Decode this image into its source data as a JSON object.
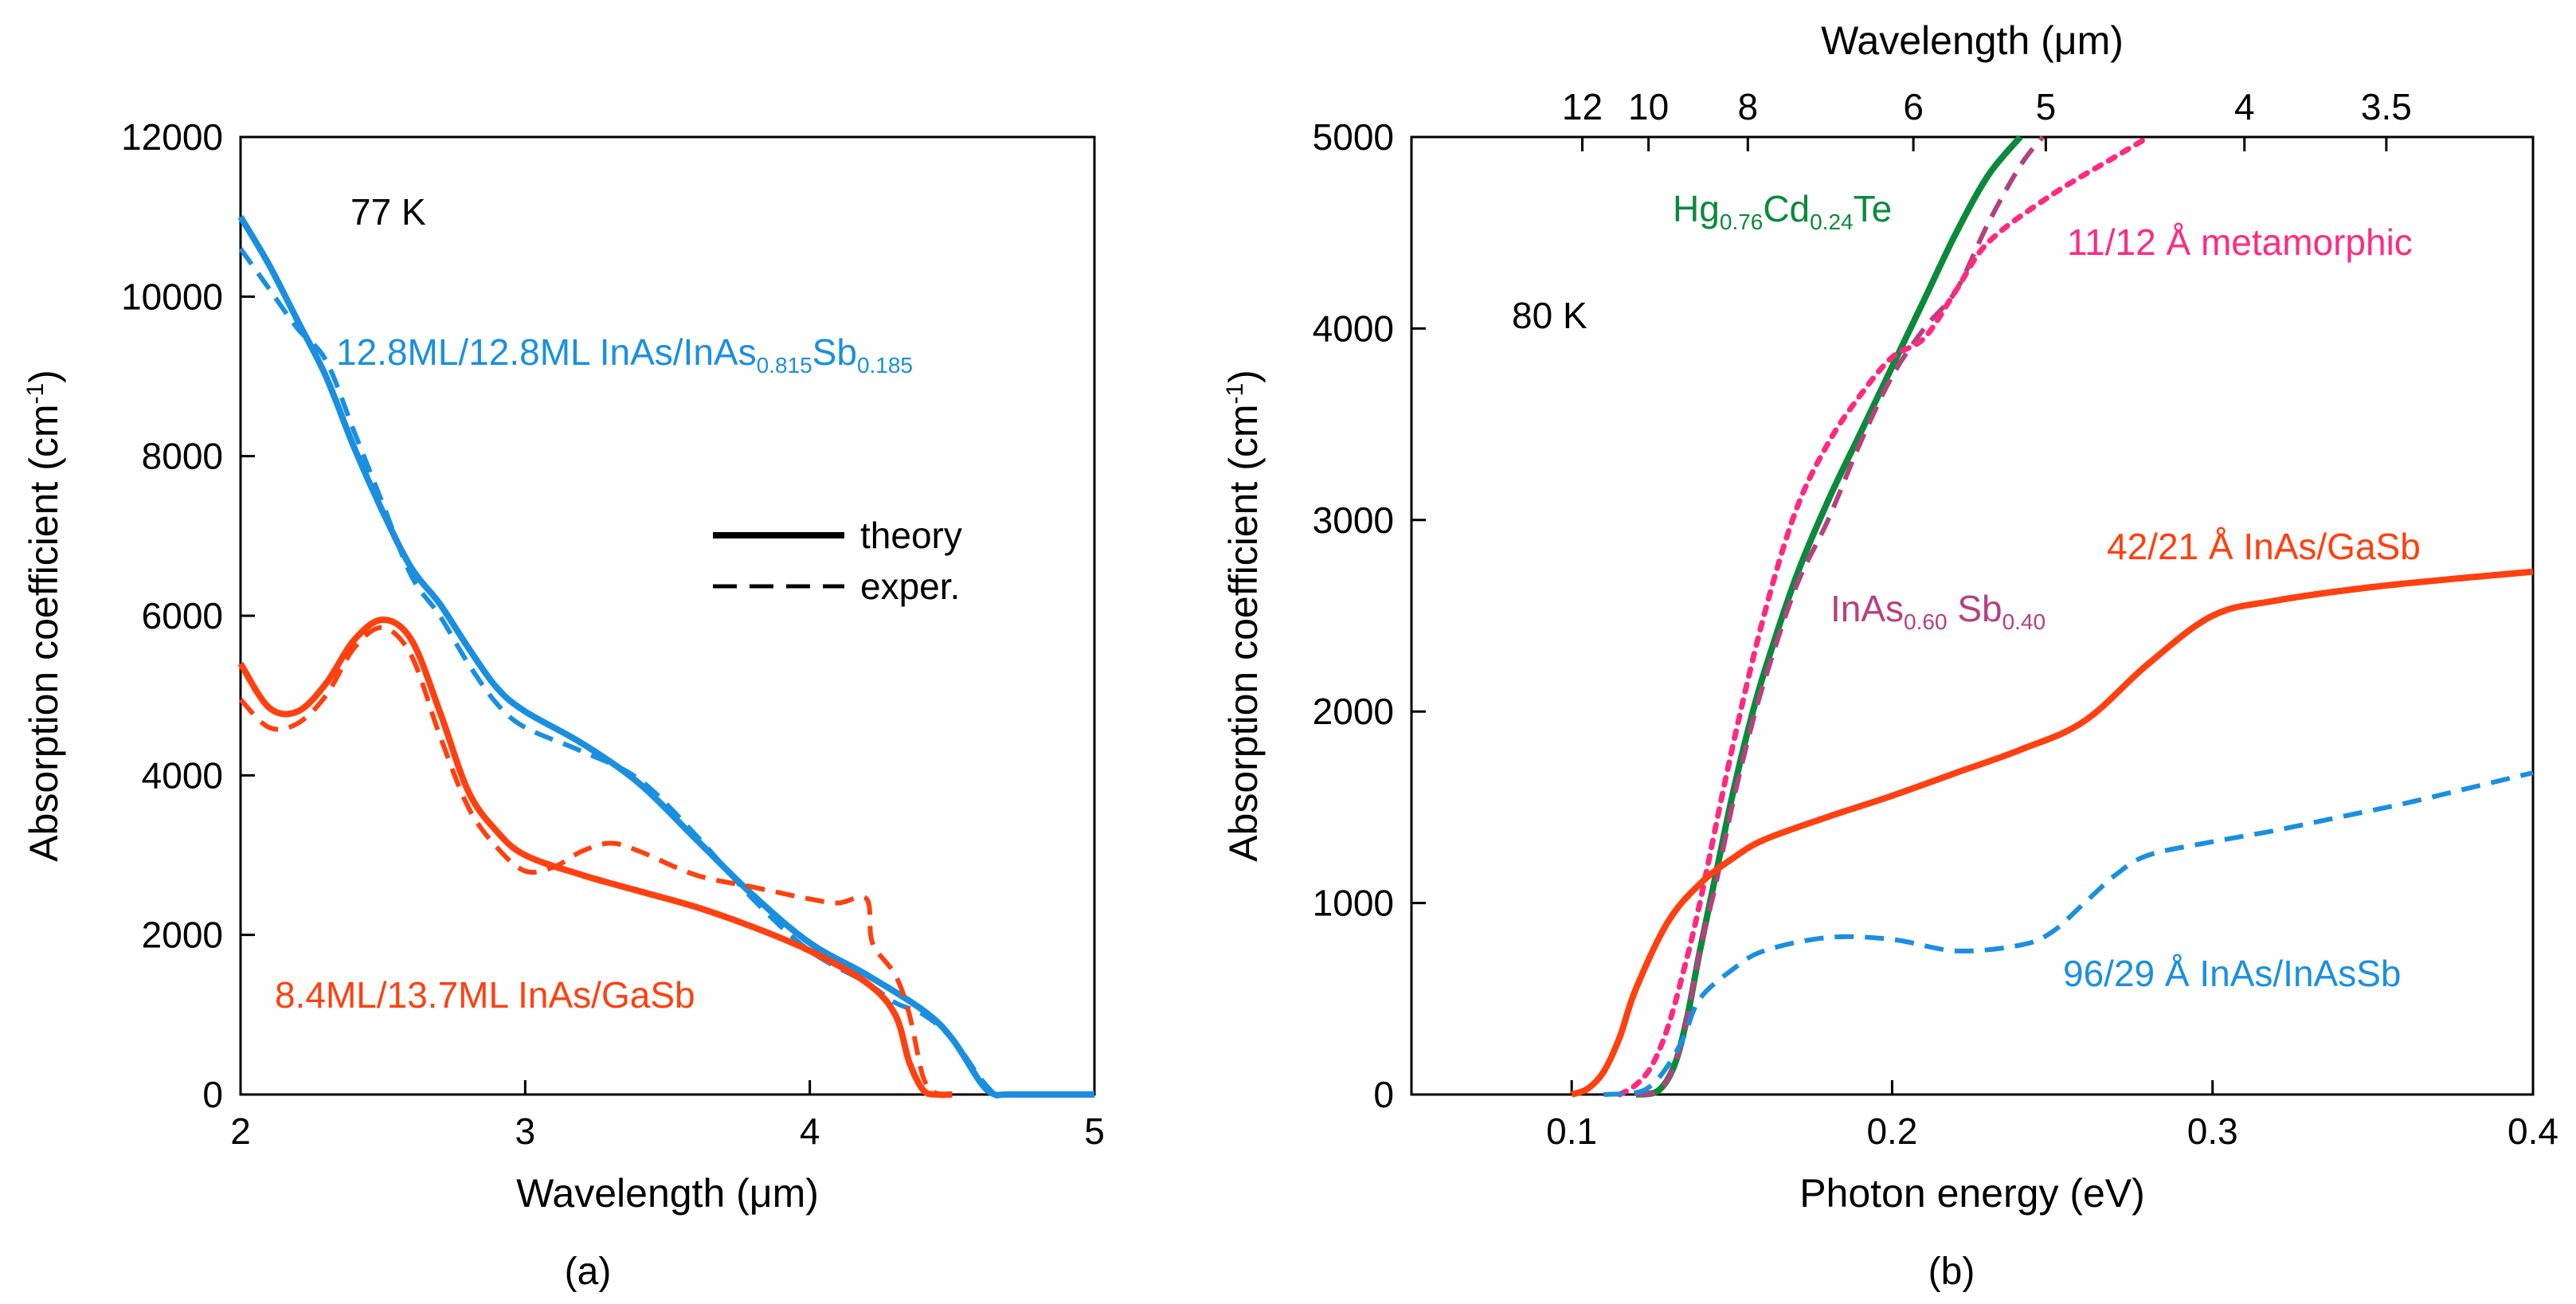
{
  "chart_data": [
    {
      "panel": "a",
      "type": "line",
      "caption": "(a)",
      "xlabel": "Wavelength (μm)",
      "ylabel": "Absorption coefficient (cm",
      "ylabel_sup": "-1",
      "ylabel_close": ")",
      "xlim": [
        2,
        5
      ],
      "ylim": [
        0,
        12000
      ],
      "xticks": [
        2,
        3,
        4,
        5
      ],
      "yticks": [
        0,
        2000,
        4000,
        6000,
        8000,
        10000,
        12000
      ],
      "temperature": "77 K",
      "legend": {
        "placement": "center-right",
        "entries": [
          {
            "label": "theory",
            "style": "solid"
          },
          {
            "label": "exper.",
            "style": "dashed"
          }
        ]
      },
      "series_labels": {
        "blue": {
          "main": "12.8ML/12.8ML InAs/InAs",
          "sub1": "0.815",
          "mid": "Sb",
          "sub2": "0.185"
        },
        "red": {
          "main": "8.4ML/13.7ML InAs/GaSb"
        }
      },
      "series": [
        {
          "name": "12.8ML/12.8ML InAs/InAs0.815Sb0.185 theory",
          "color": "#1a8fe0",
          "style": "solid",
          "x": [
            2.0,
            2.1,
            2.2,
            2.3,
            2.4,
            2.5,
            2.6,
            2.7,
            2.8,
            2.9,
            3.0,
            3.2,
            3.4,
            3.6,
            3.8,
            4.0,
            4.2,
            4.4,
            4.5,
            4.6,
            4.65,
            4.7,
            5.0
          ],
          "y": [
            11000,
            10400,
            9700,
            9000,
            8100,
            7300,
            6600,
            6150,
            5600,
            5100,
            4800,
            4400,
            3900,
            3200,
            2500,
            1900,
            1500,
            1050,
            700,
            150,
            0,
            0,
            0
          ]
        },
        {
          "name": "12.8ML/12.8ML InAs/InAs0.815Sb0.185 exper.",
          "color": "#1a8fe0",
          "style": "dashed",
          "x": [
            2.0,
            2.1,
            2.2,
            2.3,
            2.4,
            2.5,
            2.6,
            2.7,
            2.8,
            2.9,
            3.0,
            3.2,
            3.4,
            3.6,
            3.8,
            4.0,
            4.2,
            4.3,
            4.4,
            4.5,
            4.6,
            4.65
          ],
          "y": [
            10600,
            10100,
            9600,
            9200,
            8300,
            7400,
            6500,
            6000,
            5400,
            4900,
            4600,
            4300,
            3950,
            3250,
            2450,
            1800,
            1400,
            1150,
            1000,
            700,
            200,
            0
          ]
        },
        {
          "name": "8.4ML/13.7ML InAs/GaSb theory",
          "color": "#ff4010",
          "style": "solid",
          "x": [
            2.0,
            2.1,
            2.2,
            2.3,
            2.4,
            2.5,
            2.6,
            2.7,
            2.8,
            2.9,
            3.0,
            3.2,
            3.4,
            3.6,
            3.8,
            4.0,
            4.2,
            4.3,
            4.35,
            4.4,
            4.45,
            4.5
          ],
          "y": [
            5400,
            4850,
            4800,
            5150,
            5700,
            5950,
            5700,
            4800,
            3800,
            3300,
            3000,
            2750,
            2550,
            2350,
            2100,
            1800,
            1400,
            1000,
            400,
            50,
            0,
            0
          ]
        },
        {
          "name": "8.4ML/13.7ML InAs/GaSb exper.",
          "color": "#ff4010",
          "style": "dashed",
          "x": [
            2.0,
            2.1,
            2.2,
            2.3,
            2.4,
            2.5,
            2.6,
            2.7,
            2.8,
            2.9,
            3.0,
            3.1,
            3.2,
            3.3,
            3.4,
            3.6,
            3.8,
            4.0,
            4.1,
            4.2,
            4.22,
            4.3,
            4.35,
            4.4,
            4.45
          ],
          "y": [
            4950,
            4600,
            4650,
            5000,
            5600,
            5850,
            5500,
            4500,
            3600,
            3100,
            2800,
            2850,
            3050,
            3150,
            3050,
            2750,
            2600,
            2450,
            2400,
            2450,
            1900,
            1500,
            1000,
            200,
            0
          ]
        }
      ]
    },
    {
      "panel": "b",
      "type": "line",
      "caption": "(b)",
      "xlabel": "Photon energy (eV)",
      "x2label": "Wavelength (μm)",
      "ylabel": "Absorption coefficient (cm",
      "ylabel_sup": "-1",
      "ylabel_close": ")",
      "xlim": [
        0.05,
        0.4
      ],
      "ylim": [
        0,
        5000
      ],
      "xticks": [
        0.1,
        0.2,
        0.3,
        0.4
      ],
      "xtick_labels": [
        "0.1",
        "0.2",
        "0.3",
        "0.4"
      ],
      "yticks": [
        0,
        1000,
        2000,
        3000,
        4000,
        5000
      ],
      "top_ticks": [
        12,
        10,
        8,
        6,
        5,
        4,
        3.5
      ],
      "temperature": "80 K",
      "series_labels": {
        "hgcdte": {
          "a": "Hg",
          "s1": "0.76",
          "b": "Cd",
          "s2": "0.24",
          "c": "Te"
        },
        "inassb": {
          "a": "InAs",
          "s1": "0.60",
          "b": " Sb",
          "s2": "0.40"
        },
        "meta": "11/12 Å metamorphic",
        "gasb": "42/21 Å InAs/GaSb",
        "inasinassb": "96/29 Å InAs/InAsSb"
      },
      "series": [
        {
          "name": "Hg0.76Cd0.24Te",
          "color": "#0a8a3a",
          "style": "solid",
          "x": [
            0.12,
            0.127,
            0.132,
            0.136,
            0.14,
            0.145,
            0.15,
            0.155,
            0.16,
            0.17,
            0.18,
            0.19,
            0.2,
            0.21,
            0.22,
            0.23,
            0.24
          ],
          "y": [
            0,
            20,
            150,
            400,
            750,
            1150,
            1550,
            1900,
            2200,
            2700,
            3100,
            3450,
            3800,
            4150,
            4500,
            4800,
            5000
          ]
        },
        {
          "name": "InAs0.60Sb0.40",
          "color": "#b54080",
          "style": "dashed",
          "x": [
            0.12,
            0.127,
            0.132,
            0.136,
            0.14,
            0.145,
            0.15,
            0.155,
            0.16,
            0.17,
            0.18,
            0.19,
            0.2,
            0.21,
            0.22,
            0.23,
            0.24,
            0.247
          ],
          "y": [
            0,
            20,
            150,
            400,
            750,
            1100,
            1500,
            1850,
            2150,
            2650,
            3000,
            3400,
            3750,
            4000,
            4200,
            4550,
            4850,
            5000
          ]
        },
        {
          "name": "11/12 Å metamorphic",
          "color": "#ff2a80",
          "style": "dotted",
          "x": [
            0.115,
            0.12,
            0.125,
            0.13,
            0.135,
            0.14,
            0.15,
            0.16,
            0.17,
            0.18,
            0.19,
            0.2,
            0.21,
            0.22,
            0.23,
            0.25,
            0.27,
            0.28
          ],
          "y": [
            0,
            50,
            150,
            350,
            650,
            1000,
            1800,
            2500,
            3050,
            3400,
            3650,
            3850,
            3950,
            4200,
            4450,
            4700,
            4900,
            5000
          ]
        },
        {
          "name": "42/21 Å InAs/GaSb",
          "color": "#ff4010",
          "style": "solid",
          "x": [
            0.1,
            0.105,
            0.11,
            0.115,
            0.12,
            0.13,
            0.14,
            0.15,
            0.16,
            0.18,
            0.2,
            0.22,
            0.24,
            0.26,
            0.28,
            0.3,
            0.32,
            0.35,
            0.38,
            0.4
          ],
          "y": [
            0,
            30,
            120,
            300,
            550,
            900,
            1100,
            1230,
            1330,
            1450,
            1560,
            1680,
            1800,
            1950,
            2250,
            2500,
            2580,
            2650,
            2700,
            2730
          ]
        },
        {
          "name": "96/29 Å InAs/InAsSb",
          "color": "#1a8fe0",
          "style": "dashed",
          "x": [
            0.11,
            0.12,
            0.125,
            0.13,
            0.135,
            0.14,
            0.15,
            0.16,
            0.18,
            0.2,
            0.22,
            0.24,
            0.25,
            0.26,
            0.27,
            0.28,
            0.3,
            0.32,
            0.34,
            0.36,
            0.38,
            0.4
          ],
          "y": [
            0,
            10,
            50,
            150,
            300,
            500,
            650,
            750,
            820,
            810,
            750,
            780,
            850,
            1000,
            1150,
            1250,
            1320,
            1380,
            1450,
            1520,
            1600,
            1680
          ]
        }
      ]
    }
  ]
}
